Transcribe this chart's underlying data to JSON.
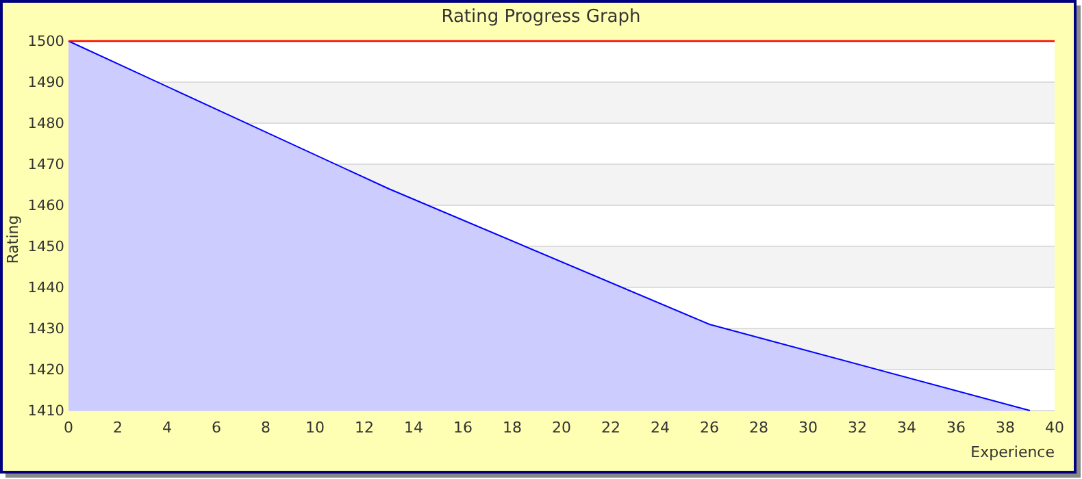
{
  "chart_data": {
    "type": "area",
    "title": "Rating Progress Graph",
    "xlabel": "Experience",
    "ylabel": "Rating",
    "x": [
      0,
      13,
      26,
      39
    ],
    "series": [
      {
        "color": "#0000ff",
        "values": [
          1500,
          1464,
          1431,
          1410
        ]
      }
    ],
    "xlim": [
      0,
      40
    ],
    "xticks": [
      0,
      2,
      4,
      6,
      8,
      10,
      12,
      14,
      16,
      18,
      20,
      22,
      24,
      26,
      28,
      30,
      32,
      34,
      36,
      38,
      40
    ],
    "ylim": [
      1410,
      1500
    ],
    "yticks": [
      1410,
      1420,
      1430,
      1440,
      1450,
      1460,
      1470,
      1480,
      1490,
      1500
    ],
    "grid": "y",
    "marker": "none",
    "line_style": "solid",
    "ref_lines": [
      {
        "axis": "y",
        "value": 1500,
        "color": "#ff0000"
      }
    ]
  }
}
